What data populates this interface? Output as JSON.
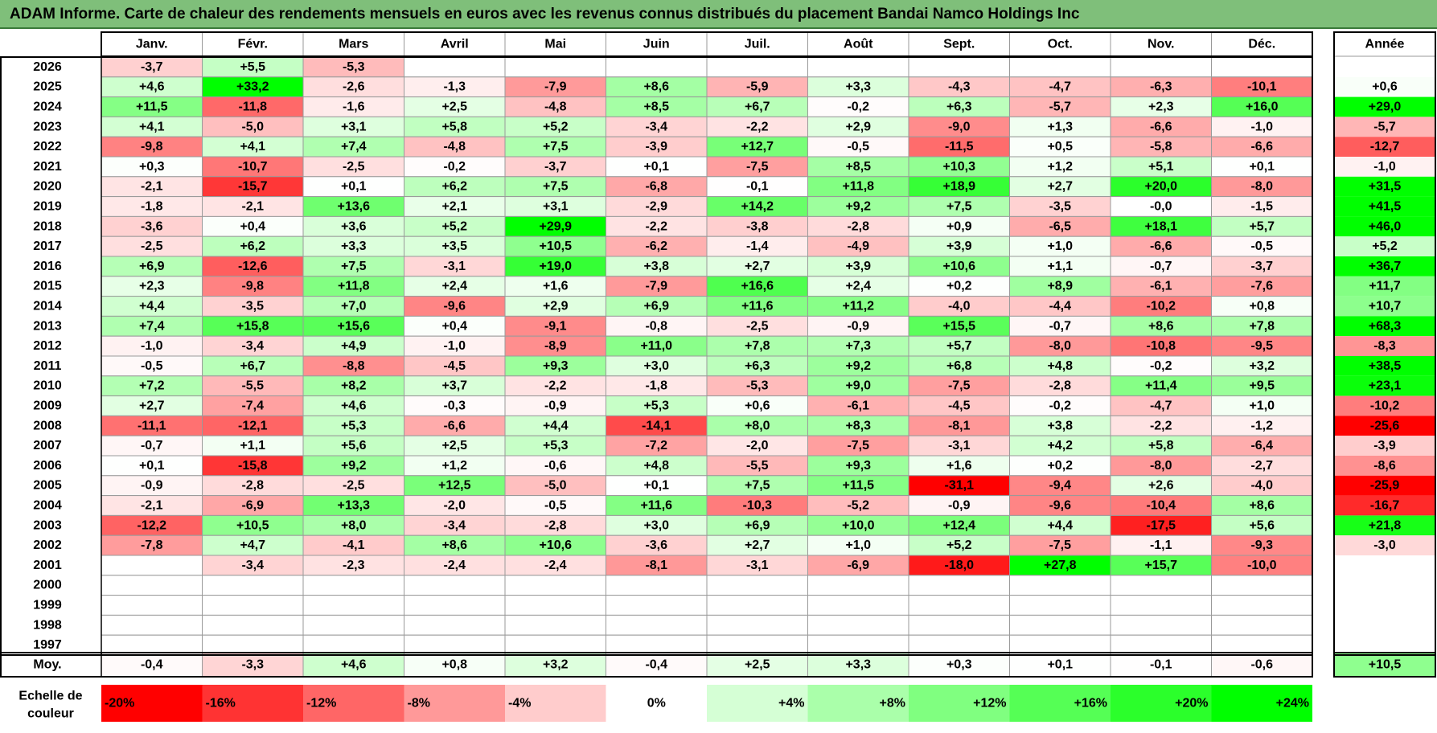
{
  "title": "ADAM Informe. Carte de chaleur des rendements mensuels en euros avec les revenus connus distribués du placement Bandai Namco Holdings Inc",
  "chart_data": {
    "type": "heatmap",
    "title": "ADAM Informe. Carte de chaleur des rendements mensuels en euros avec les revenus connus distribués du placement Bandai Namco Holdings Inc",
    "months": [
      "Janv.",
      "Févr.",
      "Mars",
      "Avril",
      "Mai",
      "Juin",
      "Juil.",
      "Août",
      "Sept.",
      "Oct.",
      "Nov.",
      "Déc."
    ],
    "year_header": "Année",
    "rows": [
      {
        "year": "2026",
        "values": [
          -3.7,
          5.5,
          -5.3,
          null,
          null,
          null,
          null,
          null,
          null,
          null,
          null,
          null
        ],
        "annual": null
      },
      {
        "year": "2025",
        "values": [
          4.6,
          33.2,
          -2.6,
          -1.3,
          -7.9,
          8.6,
          -5.9,
          3.3,
          -4.3,
          -4.7,
          -6.3,
          -10.1
        ],
        "annual": 0.6
      },
      {
        "year": "2024",
        "values": [
          11.5,
          -11.8,
          -1.6,
          2.5,
          -4.8,
          8.5,
          6.7,
          -0.2,
          6.3,
          -5.7,
          2.3,
          16.0
        ],
        "annual": 29.0
      },
      {
        "year": "2023",
        "values": [
          4.1,
          -5.0,
          3.1,
          5.8,
          5.2,
          -3.4,
          -2.2,
          2.9,
          -9.0,
          1.3,
          -6.6,
          -1.0
        ],
        "annual": -5.7
      },
      {
        "year": "2022",
        "values": [
          -9.8,
          4.1,
          7.4,
          -4.8,
          7.5,
          -3.9,
          12.7,
          -0.5,
          -11.5,
          0.5,
          -5.8,
          -6.6
        ],
        "annual": -12.7
      },
      {
        "year": "2021",
        "values": [
          0.3,
          -10.7,
          -2.5,
          -0.2,
          -3.7,
          0.1,
          -7.5,
          8.5,
          10.3,
          1.2,
          5.1,
          0.1
        ],
        "annual": -1.0
      },
      {
        "year": "2020",
        "values": [
          -2.1,
          -15.7,
          0.1,
          6.2,
          7.5,
          -6.8,
          -0.1,
          11.8,
          18.9,
          2.7,
          20.0,
          -8.0
        ],
        "annual": 31.5
      },
      {
        "year": "2019",
        "values": [
          -1.8,
          -2.1,
          13.6,
          2.1,
          3.1,
          -2.9,
          14.2,
          9.2,
          7.5,
          -3.5,
          -0.0,
          -1.5
        ],
        "annual": 41.5
      },
      {
        "year": "2018",
        "values": [
          -3.6,
          0.4,
          3.6,
          5.2,
          29.9,
          -2.2,
          -3.8,
          -2.8,
          0.9,
          -6.5,
          18.1,
          5.7
        ],
        "annual": 46.0
      },
      {
        "year": "2017",
        "values": [
          -2.5,
          6.2,
          3.3,
          3.5,
          10.5,
          -6.2,
          -1.4,
          -4.9,
          3.9,
          1.0,
          -6.6,
          -0.5
        ],
        "annual": 5.2
      },
      {
        "year": "2016",
        "values": [
          6.9,
          -12.6,
          7.5,
          -3.1,
          19.0,
          3.8,
          2.7,
          3.9,
          10.6,
          1.1,
          -0.7,
          -3.7
        ],
        "annual": 36.7
      },
      {
        "year": "2015",
        "values": [
          2.3,
          -9.8,
          11.8,
          2.4,
          1.6,
          -7.9,
          16.6,
          2.4,
          0.2,
          8.9,
          -6.1,
          -7.6
        ],
        "annual": 11.7
      },
      {
        "year": "2014",
        "values": [
          4.4,
          -3.5,
          7.0,
          -9.6,
          2.9,
          6.9,
          11.6,
          11.2,
          -4.0,
          -4.4,
          -10.2,
          0.8
        ],
        "annual": 10.7
      },
      {
        "year": "2013",
        "values": [
          7.4,
          15.8,
          15.6,
          0.4,
          -9.1,
          -0.8,
          -2.5,
          -0.9,
          15.5,
          -0.7,
          8.6,
          7.8
        ],
        "annual": 68.3
      },
      {
        "year": "2012",
        "values": [
          -1.0,
          -3.4,
          4.9,
          -1.0,
          -8.9,
          11.0,
          7.8,
          7.3,
          5.7,
          -8.0,
          -10.8,
          -9.5
        ],
        "annual": -8.3
      },
      {
        "year": "2011",
        "values": [
          -0.5,
          6.7,
          -8.8,
          -4.5,
          9.3,
          3.0,
          6.3,
          9.2,
          6.8,
          4.8,
          -0.2,
          3.2
        ],
        "annual": 38.5
      },
      {
        "year": "2010",
        "values": [
          7.2,
          -5.5,
          8.2,
          3.7,
          -2.2,
          -1.8,
          -5.3,
          9.0,
          -7.5,
          -2.8,
          11.4,
          9.5
        ],
        "annual": 23.1
      },
      {
        "year": "2009",
        "values": [
          2.7,
          -7.4,
          4.6,
          -0.3,
          -0.9,
          5.3,
          0.6,
          -6.1,
          -4.5,
          -0.2,
          -4.7,
          1.0
        ],
        "annual": -10.2
      },
      {
        "year": "2008",
        "values": [
          -11.1,
          -12.1,
          5.3,
          -6.6,
          4.4,
          -14.1,
          8.0,
          8.3,
          -8.1,
          3.8,
          -2.2,
          -1.2
        ],
        "annual": -25.6
      },
      {
        "year": "2007",
        "values": [
          -0.7,
          1.1,
          5.6,
          2.5,
          5.3,
          -7.2,
          -2.0,
          -7.5,
          -3.1,
          4.2,
          5.8,
          -6.4
        ],
        "annual": -3.9
      },
      {
        "year": "2006",
        "values": [
          0.1,
          -15.8,
          9.2,
          1.2,
          -0.6,
          4.8,
          -5.5,
          9.3,
          1.6,
          0.2,
          -8.0,
          -2.7
        ],
        "annual": -8.6
      },
      {
        "year": "2005",
        "values": [
          -0.9,
          -2.8,
          -2.5,
          12.5,
          -5.0,
          0.1,
          7.5,
          11.5,
          -31.1,
          -9.4,
          2.6,
          -4.0
        ],
        "annual": -25.9
      },
      {
        "year": "2004",
        "values": [
          -2.1,
          -6.9,
          13.3,
          -2.0,
          -0.5,
          11.6,
          -10.3,
          -5.2,
          -0.9,
          -9.6,
          -10.4,
          8.6
        ],
        "annual": -16.7
      },
      {
        "year": "2003",
        "values": [
          -12.2,
          10.5,
          8.0,
          -3.4,
          -2.8,
          3.0,
          6.9,
          10.0,
          12.4,
          4.4,
          -17.5,
          5.6
        ],
        "annual": 21.8
      },
      {
        "year": "2002",
        "values": [
          -7.8,
          4.7,
          -4.1,
          8.6,
          10.6,
          -3.6,
          2.7,
          1.0,
          5.2,
          -7.5,
          -1.1,
          -9.3
        ],
        "annual": -3.0
      },
      {
        "year": "2001",
        "values": [
          null,
          -3.4,
          -2.3,
          -2.4,
          -2.4,
          -8.1,
          -3.1,
          -6.9,
          -18.0,
          27.8,
          15.7,
          -10.0
        ],
        "annual": null
      },
      {
        "year": "2000",
        "values": [
          null,
          null,
          null,
          null,
          null,
          null,
          null,
          null,
          null,
          null,
          null,
          null
        ],
        "annual": null
      },
      {
        "year": "1999",
        "values": [
          null,
          null,
          null,
          null,
          null,
          null,
          null,
          null,
          null,
          null,
          null,
          null
        ],
        "annual": null
      },
      {
        "year": "1998",
        "values": [
          null,
          null,
          null,
          null,
          null,
          null,
          null,
          null,
          null,
          null,
          null,
          null
        ],
        "annual": null
      },
      {
        "year": "1997",
        "values": [
          null,
          null,
          null,
          null,
          null,
          null,
          null,
          null,
          null,
          null,
          null,
          null
        ],
        "annual": null
      }
    ],
    "average": {
      "label": "Moy.",
      "values": [
        -0.4,
        -3.3,
        4.6,
        0.8,
        3.2,
        -0.4,
        2.5,
        3.3,
        0.3,
        0.1,
        -0.1,
        -0.6
      ],
      "annual": 10.5
    },
    "scale": {
      "label_line1": "Echelle de",
      "label_line2": "couleur",
      "steps": [
        "-20%",
        "-16%",
        "-12%",
        "-8%",
        "-4%",
        "0%",
        "+4%",
        "+8%",
        "+12%",
        "+16%",
        "+20%",
        "+24%"
      ],
      "step_values": [
        -20,
        -16,
        -12,
        -8,
        -4,
        0,
        4,
        8,
        12,
        16,
        20,
        24
      ]
    },
    "colors": {
      "negative": "#ff0000",
      "positive": "#00ff00",
      "neutral": "#ffffff",
      "title_bar": "#7fbf7a"
    }
  }
}
